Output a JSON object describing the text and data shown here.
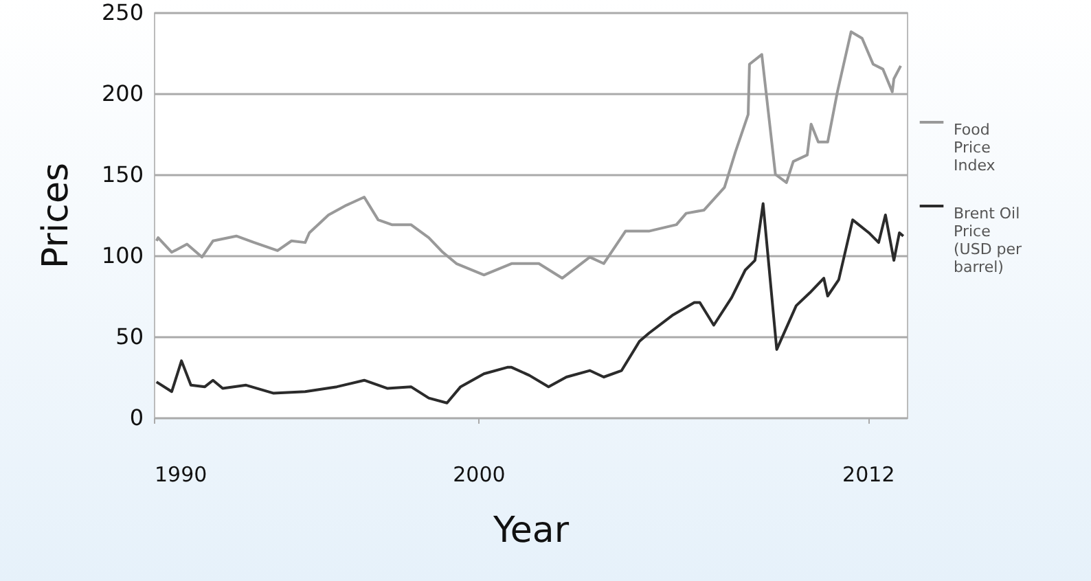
{
  "chart_data": {
    "type": "line",
    "xlabel": "Year",
    "ylabel": "Prices",
    "xlim": [
      1990,
      2013.2
    ],
    "xticks": [
      1990,
      2000,
      2012
    ],
    "ylim": [
      0,
      250
    ],
    "yticks": [
      0,
      50,
      100,
      150,
      200,
      250
    ],
    "grid": "y",
    "legend": "right",
    "series": [
      {
        "name": "Food Price Index",
        "color": "#999999",
        "x": [
          1990.08,
          1990.13,
          1990.55,
          1991.02,
          1991.48,
          1991.82,
          1992.54,
          1993.09,
          1993.81,
          1994.24,
          1994.66,
          1994.79,
          1995.38,
          1995.93,
          1996.48,
          1996.91,
          1997.33,
          1997.92,
          1998.47,
          1998.9,
          1999.32,
          2000.17,
          2001.02,
          2001.86,
          2002.58,
          2003.43,
          2003.86,
          2004.53,
          2005.25,
          2006.1,
          2006.4,
          2006.95,
          2007.58,
          2007.92,
          2008.31,
          2008.35,
          2008.73,
          2009.15,
          2009.49,
          2009.7,
          2010.13,
          2010.25,
          2010.47,
          2010.76,
          2011.06,
          2011.48,
          2011.82,
          2012.16,
          2012.46,
          2012.75,
          2012.8,
          2013.01
        ],
        "values": [
          109,
          111,
          102,
          107,
          99,
          109,
          112,
          108,
          103,
          109,
          108,
          114,
          125,
          131,
          136,
          122,
          119,
          119,
          111,
          102,
          95,
          88,
          95,
          95,
          86,
          99,
          95,
          115,
          115,
          119,
          126,
          128,
          142,
          164,
          187,
          218,
          224,
          150,
          145,
          158,
          162,
          181,
          170,
          170,
          201,
          238,
          234,
          218,
          215,
          201,
          209,
          217
        ]
      },
      {
        "name": "Brent Oil Price (USD per barrel)",
        "color": "#2b2b2b",
        "x": [
          1990.08,
          1990.55,
          1990.85,
          1991.14,
          1991.57,
          1991.82,
          1992.12,
          1992.84,
          1993.69,
          1994.66,
          1995.64,
          1996.48,
          1997.2,
          1997.92,
          1998.47,
          1999.03,
          1999.45,
          2000.17,
          2000.89,
          2001.02,
          2001.57,
          2002.16,
          2002.71,
          2003.43,
          2003.86,
          2004.41,
          2004.96,
          2005.25,
          2005.97,
          2006.65,
          2006.82,
          2007.25,
          2007.8,
          2008.22,
          2008.52,
          2008.77,
          2009.19,
          2009.79,
          2010.21,
          2010.64,
          2010.76,
          2011.1,
          2011.53,
          2012.03,
          2012.33,
          2012.54,
          2012.8,
          2012.97,
          2013.09
        ],
        "values": [
          22,
          16,
          35,
          20,
          19,
          23,
          18,
          20,
          15,
          16,
          19,
          23,
          18,
          19,
          12,
          9,
          19,
          27,
          31,
          31,
          26,
          19,
          25,
          29,
          25,
          29,
          47,
          52,
          63,
          71,
          71,
          57,
          74,
          91,
          97,
          132,
          42,
          69,
          77,
          86,
          75,
          85,
          122,
          114,
          108,
          125,
          97,
          114,
          112
        ]
      }
    ]
  }
}
